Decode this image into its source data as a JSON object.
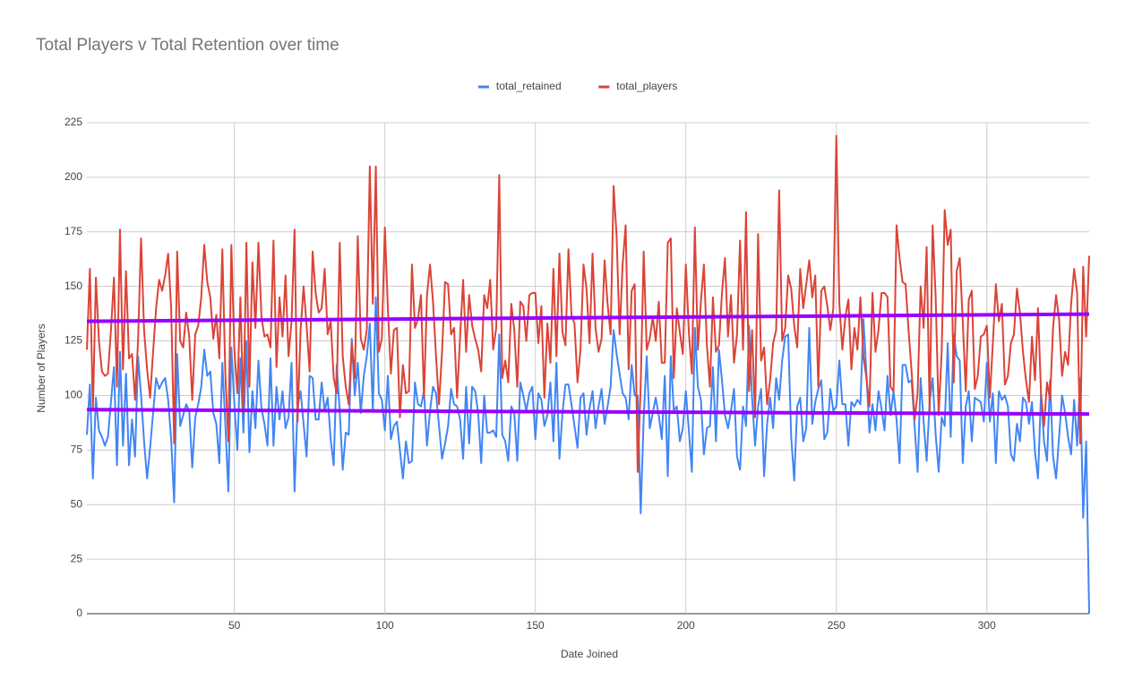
{
  "chart_data": {
    "type": "line",
    "title": "Total Players v Total Retention over time",
    "x_label": "Date Joined",
    "y_label": "Number of Players",
    "xlim": [
      1,
      334
    ],
    "xticks": [
      50,
      100,
      150,
      200,
      250,
      300
    ],
    "ylim": [
      0,
      225
    ],
    "yticks": [
      0,
      25,
      50,
      75,
      100,
      125,
      150,
      175,
      200,
      225
    ],
    "grid": true,
    "legend": "top",
    "x": [
      1,
      2,
      3,
      4,
      5,
      6,
      7,
      8,
      9,
      10,
      11,
      12,
      13,
      14,
      15,
      16,
      17,
      18,
      19,
      20,
      21,
      22,
      23,
      24,
      25,
      26,
      27,
      28,
      29,
      30,
      31,
      32,
      33,
      34,
      35,
      36,
      37,
      38,
      39,
      40,
      41,
      42,
      43,
      44,
      45,
      46,
      47,
      48,
      49,
      50,
      51,
      52,
      53,
      54,
      55,
      56,
      57,
      58,
      59,
      60,
      61,
      62,
      63,
      64,
      65,
      66,
      67,
      68,
      69,
      70,
      71,
      72,
      73,
      74,
      75,
      76,
      77,
      78,
      79,
      80,
      81,
      82,
      83,
      84,
      85,
      86,
      87,
      88,
      89,
      90,
      91,
      92,
      93,
      94,
      95,
      96,
      97,
      98,
      99,
      100,
      101,
      102,
      103,
      104,
      105,
      106,
      107,
      108,
      109,
      110,
      111,
      112,
      113,
      114,
      115,
      116,
      117,
      118,
      119,
      120,
      121,
      122,
      123,
      124,
      125,
      126,
      127,
      128,
      129,
      130,
      131,
      132,
      133,
      134,
      135,
      136,
      137,
      138,
      139,
      140,
      141,
      142,
      143,
      144,
      145,
      146,
      147,
      148,
      149,
      150,
      151,
      152,
      153,
      154,
      155,
      156,
      157,
      158,
      159,
      160,
      161,
      162,
      163,
      164,
      165,
      166,
      167,
      168,
      169,
      170,
      171,
      172,
      173,
      174,
      175,
      176,
      177,
      178,
      179,
      180,
      181,
      182,
      183,
      184,
      185,
      186,
      187,
      188,
      189,
      190,
      191,
      192,
      193,
      194,
      195,
      196,
      197,
      198,
      199,
      200,
      201,
      202,
      203,
      204,
      205,
      206,
      207,
      208,
      209,
      210,
      211,
      212,
      213,
      214,
      215,
      216,
      217,
      218,
      219,
      220,
      221,
      222,
      223,
      224,
      225,
      226,
      227,
      228,
      229,
      230,
      231,
      232,
      233,
      234,
      235,
      236,
      237,
      238,
      239,
      240,
      241,
      242,
      243,
      244,
      245,
      246,
      247,
      248,
      249,
      250,
      251,
      252,
      253,
      254,
      255,
      256,
      257,
      258,
      259,
      260,
      261,
      262,
      263,
      264,
      265,
      266,
      267,
      268,
      269,
      270,
      271,
      272,
      273,
      274,
      275,
      276,
      277,
      278,
      279,
      280,
      281,
      282,
      283,
      284,
      285,
      286,
      287,
      288,
      289,
      290,
      291,
      292,
      293,
      294,
      295,
      296,
      297,
      298,
      299,
      300,
      301,
      302,
      303,
      304,
      305,
      306,
      307,
      308,
      309,
      310,
      311,
      312,
      313,
      314,
      315,
      316,
      317,
      318,
      319,
      320,
      321,
      322,
      323,
      324,
      325,
      326,
      327,
      328,
      329,
      330,
      331,
      332,
      333,
      334
    ],
    "series": [
      {
        "name": "total_retained",
        "color": "#4285f4",
        "values": [
          82,
          105,
          62,
          99,
          84,
          81,
          77,
          81,
          97,
          113,
          68,
          120,
          77,
          110,
          68,
          89,
          72,
          118,
          100,
          79,
          62,
          76,
          92,
          108,
          103,
          106,
          108,
          98,
          80,
          51,
          119,
          86,
          91,
          96,
          93,
          67,
          90,
          96,
          104,
          121,
          109,
          111,
          92,
          87,
          69,
          115,
          87,
          56,
          122,
          96,
          75,
          117,
          83,
          125,
          74,
          102,
          85,
          116,
          94,
          87,
          77,
          117,
          77,
          104,
          89,
          102,
          85,
          90,
          115,
          56,
          95,
          102,
          87,
          72,
          109,
          108,
          89,
          89,
          106,
          93,
          99,
          80,
          68,
          114,
          93,
          66,
          83,
          82,
          126,
          100,
          115,
          92,
          109,
          118,
          133,
          93,
          145,
          101,
          98,
          84,
          109,
          80,
          86,
          88,
          75,
          62,
          79,
          69,
          70,
          106,
          96,
          95,
          102,
          77,
          93,
          104,
          101,
          86,
          71,
          78,
          86,
          103,
          96,
          95,
          89,
          71,
          104,
          78,
          104,
          102,
          92,
          69,
          100,
          83,
          83,
          84,
          81,
          128,
          82,
          79,
          70,
          95,
          92,
          70,
          106,
          100,
          93,
          101,
          104,
          80,
          101,
          98,
          86,
          91,
          106,
          79,
          115,
          71,
          92,
          105,
          105,
          96,
          86,
          76,
          99,
          101,
          82,
          94,
          102,
          85,
          95,
          103,
          87,
          95,
          104,
          130,
          119,
          110,
          101,
          99,
          89,
          114,
          100,
          100,
          46,
          90,
          118,
          85,
          92,
          99,
          91,
          80,
          109,
          63,
          118,
          93,
          95,
          79,
          85,
          102,
          84,
          65,
          131,
          104,
          98,
          73,
          85,
          86,
          113,
          79,
          121,
          107,
          91,
          85,
          93,
          103,
          72,
          66,
          95,
          86,
          132,
          99,
          77,
          95,
          103,
          63,
          87,
          99,
          85,
          108,
          98,
          116,
          127,
          128,
          81,
          61,
          95,
          99,
          79,
          85,
          131,
          87,
          97,
          103,
          107,
          80,
          83,
          103,
          93,
          95,
          116,
          96,
          96,
          77,
          97,
          95,
          98,
          96,
          135,
          110,
          83,
          96,
          84,
          102,
          94,
          84,
          109,
          91,
          102,
          89,
          69,
          114,
          114,
          106,
          107,
          86,
          65,
          108,
          88,
          70,
          97,
          108,
          82,
          65,
          90,
          86,
          124,
          81,
          128,
          118,
          116,
          69,
          95,
          102,
          79,
          99,
          98,
          97,
          88,
          115,
          88,
          101,
          69,
          102,
          98,
          100,
          95,
          73,
          70,
          87,
          79,
          99,
          97,
          87,
          97,
          74,
          62,
          101,
          79,
          70,
          107,
          72,
          62,
          81,
          100,
          92,
          81,
          73,
          98,
          77,
          108,
          44,
          79,
          0
        ]
      },
      {
        "name": "total_players",
        "color": "#db4437",
        "values": [
          121,
          158,
          93,
          154,
          125,
          111,
          109,
          110,
          130,
          154,
          104,
          176,
          112,
          157,
          117,
          119,
          98,
          125,
          172,
          130,
          112,
          99,
          120,
          140,
          153,
          148,
          155,
          165,
          140,
          78,
          166,
          125,
          122,
          138,
          127,
          98,
          128,
          132,
          145,
          169,
          152,
          145,
          126,
          137,
          117,
          167,
          110,
          79,
          169,
          121,
          101,
          145,
          92,
          170,
          104,
          161,
          131,
          170,
          136,
          127,
          128,
          122,
          171,
          113,
          145,
          127,
          155,
          118,
          134,
          176,
          88,
          130,
          150,
          132,
          111,
          166,
          147,
          138,
          140,
          158,
          128,
          134,
          108,
          101,
          170,
          118,
          104,
          96,
          124,
          108,
          173,
          126,
          121,
          130,
          205,
          142,
          205,
          120,
          126,
          177,
          140,
          110,
          130,
          131,
          90,
          114,
          101,
          102,
          160,
          131,
          135,
          146,
          99,
          146,
          160,
          143,
          118,
          96,
          120,
          152,
          151,
          128,
          131,
          99,
          127,
          153,
          120,
          146,
          132,
          126,
          121,
          111,
          146,
          140,
          153,
          121,
          131,
          201,
          108,
          116,
          106,
          142,
          130,
          104,
          143,
          141,
          125,
          146,
          147,
          147,
          124,
          141,
          99,
          133,
          115,
          158,
          118,
          165,
          129,
          123,
          167,
          137,
          133,
          106,
          121,
          160,
          149,
          124,
          165,
          131,
          120,
          126,
          162,
          142,
          128,
          196,
          173,
          128,
          160,
          178,
          112,
          148,
          151,
          65,
          105,
          166,
          121,
          126,
          136,
          125,
          143,
          115,
          115,
          170,
          172,
          108,
          140,
          129,
          119,
          160,
          129,
          110,
          177,
          121,
          143,
          160,
          123,
          104,
          145,
          120,
          123,
          147,
          163,
          127,
          146,
          115,
          128,
          171,
          121,
          184,
          102,
          130,
          90,
          174,
          116,
          122,
          96,
          107,
          124,
          130,
          194,
          125,
          131,
          155,
          149,
          132,
          122,
          158,
          140,
          151,
          162,
          145,
          155,
          104,
          148,
          150,
          141,
          130,
          140,
          219,
          142,
          121,
          136,
          144,
          112,
          131,
          121,
          145,
          118,
          108,
          95,
          147,
          120,
          130,
          147,
          147,
          145,
          104,
          102,
          178,
          163,
          152,
          151,
          130,
          111,
          89,
          101,
          150,
          131,
          168,
          93,
          178,
          145,
          91,
          120,
          185,
          169,
          176,
          106,
          157,
          163,
          134,
          102,
          144,
          148,
          103,
          109,
          127,
          128,
          132,
          99,
          124,
          151,
          134,
          142,
          105,
          109,
          124,
          128,
          149,
          138,
          120,
          107,
          97,
          127,
          107,
          140,
          101,
          86,
          106,
          98,
          131,
          146,
          135,
          109,
          120,
          114,
          142,
          158,
          147,
          78,
          159,
          127,
          164
        ]
      }
    ],
    "trendlines": [
      {
        "color": "#9900ff",
        "x": [
          1,
          334
        ],
        "values": [
          93.5,
          91.5
        ]
      },
      {
        "color": "#9900ff",
        "x": [
          1,
          334
        ],
        "values": [
          134,
          137.3
        ]
      }
    ]
  }
}
